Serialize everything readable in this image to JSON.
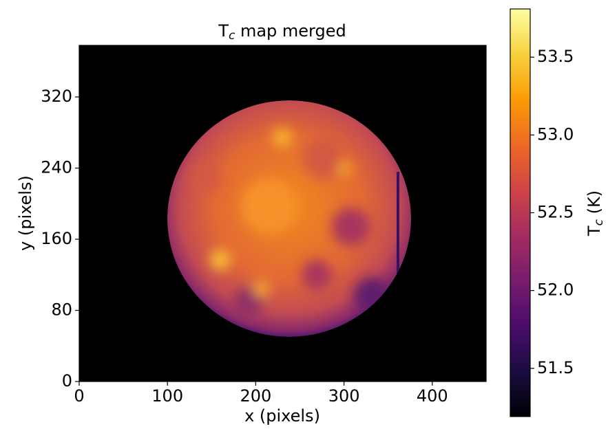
{
  "chart_data": {
    "type": "heatmap",
    "title": [
      "T",
      "c",
      " map merged"
    ],
    "xlabel": "x (pixels)",
    "ylabel": "y (pixels)",
    "xlim": [
      0,
      461
    ],
    "xticks": [
      0,
      100,
      200,
      300,
      400
    ],
    "ylim": [
      0,
      378
    ],
    "yticks": [
      0,
      80,
      160,
      240,
      320
    ],
    "colormap": "inferno",
    "colorbar_label": [
      "T",
      "c",
      " (K)"
    ],
    "clim": [
      51.19,
      53.81
    ],
    "cticks": [
      51.5,
      {
        "value": 52,
        "label": "52.0"
      },
      52.5,
      {
        "value": 53,
        "label": "53.0"
      },
      53.5
    ]
  }
}
